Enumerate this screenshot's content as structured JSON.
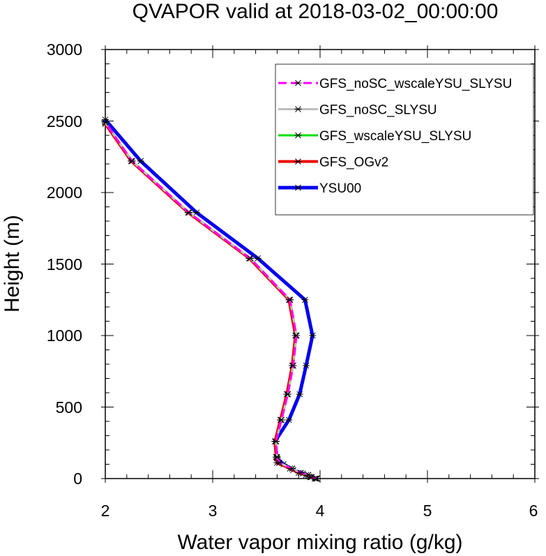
{
  "chart_data": {
    "type": "line",
    "title": "QVAPOR valid at 2018-03-02_00:00:00",
    "xlabel": "Water vapor mixing ratio (g/kg)",
    "ylabel": "Height (m)",
    "xlim": [
      2,
      6
    ],
    "ylim": [
      0,
      3000
    ],
    "x_ticks": [
      "2",
      "3",
      "4",
      "5",
      "6"
    ],
    "y_ticks": [
      "0",
      "500",
      "1000",
      "1500",
      "2000",
      "2500",
      "3000"
    ],
    "grid": false,
    "legend_position": "top-right",
    "series": [
      {
        "name": "GFS_noSC_wscaleYSU_SLYSU",
        "color": "#ff00ff",
        "dash": "dashed",
        "points": [
          [
            3.97,
            0
          ],
          [
            3.92,
            10
          ],
          [
            3.89,
            25
          ],
          [
            3.82,
            40
          ],
          [
            3.74,
            70
          ],
          [
            3.62,
            110
          ],
          [
            3.6,
            150
          ],
          [
            3.59,
            260
          ],
          [
            3.64,
            410
          ],
          [
            3.7,
            590
          ],
          [
            3.75,
            790
          ],
          [
            3.78,
            1000
          ],
          [
            3.72,
            1250
          ],
          [
            3.35,
            1540
          ],
          [
            2.78,
            1860
          ],
          [
            2.25,
            2220
          ],
          [
            2.0,
            2490
          ]
        ]
      },
      {
        "name": "GFS_noSC_SLYSU",
        "color": "#bdbdbd",
        "dash": "solid",
        "points": [
          [
            3.97,
            0
          ],
          [
            3.92,
            10
          ],
          [
            3.89,
            25
          ],
          [
            3.82,
            40
          ],
          [
            3.74,
            70
          ],
          [
            3.62,
            110
          ],
          [
            3.6,
            150
          ],
          [
            3.59,
            260
          ],
          [
            3.64,
            410
          ],
          [
            3.7,
            590
          ],
          [
            3.75,
            790
          ],
          [
            3.78,
            1000
          ],
          [
            3.72,
            1250
          ],
          [
            3.35,
            1540
          ],
          [
            2.78,
            1860
          ],
          [
            2.25,
            2220
          ],
          [
            2.0,
            2490
          ]
        ]
      },
      {
        "name": "GFS_wscaleYSU_SLYSU",
        "color": "#00dd00",
        "dash": "solid",
        "points": [
          [
            3.97,
            0
          ],
          [
            3.92,
            10
          ],
          [
            3.89,
            25
          ],
          [
            3.82,
            40
          ],
          [
            3.74,
            70
          ],
          [
            3.62,
            110
          ],
          [
            3.6,
            150
          ],
          [
            3.59,
            260
          ],
          [
            3.64,
            410
          ],
          [
            3.7,
            590
          ],
          [
            3.75,
            790
          ],
          [
            3.78,
            1000
          ],
          [
            3.72,
            1250
          ],
          [
            3.35,
            1540
          ],
          [
            2.78,
            1860
          ],
          [
            2.25,
            2220
          ],
          [
            2.0,
            2490
          ]
        ]
      },
      {
        "name": "GFS_OGv2",
        "color": "#ee0000",
        "dash": "solid",
        "points": [
          [
            3.96,
            0
          ],
          [
            3.91,
            10
          ],
          [
            3.87,
            25
          ],
          [
            3.8,
            40
          ],
          [
            3.72,
            70
          ],
          [
            3.6,
            110
          ],
          [
            3.59,
            150
          ],
          [
            3.58,
            260
          ],
          [
            3.63,
            410
          ],
          [
            3.69,
            590
          ],
          [
            3.74,
            790
          ],
          [
            3.77,
            1000
          ],
          [
            3.71,
            1250
          ],
          [
            3.34,
            1540
          ],
          [
            2.77,
            1860
          ],
          [
            2.24,
            2220
          ],
          [
            2.0,
            2480
          ]
        ]
      },
      {
        "name": "YSU00",
        "color": "#0000ee",
        "dash": "solid",
        "points": [
          [
            3.95,
            0
          ],
          [
            3.9,
            15
          ],
          [
            3.84,
            35
          ],
          [
            3.75,
            60
          ],
          [
            3.66,
            100
          ],
          [
            3.6,
            140
          ],
          [
            3.58,
            260
          ],
          [
            3.71,
            410
          ],
          [
            3.81,
            590
          ],
          [
            3.87,
            790
          ],
          [
            3.93,
            1000
          ],
          [
            3.86,
            1250
          ],
          [
            3.42,
            1540
          ],
          [
            2.85,
            1860
          ],
          [
            2.33,
            2220
          ],
          [
            2.0,
            2510
          ]
        ]
      }
    ]
  }
}
